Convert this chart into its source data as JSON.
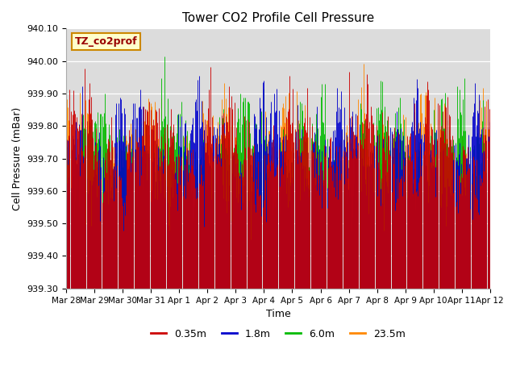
{
  "title": "Tower CO2 Profile Cell Pressure",
  "xlabel": "Time",
  "ylabel": "Cell Pressure (mBar)",
  "ylim": [
    939.3,
    940.1
  ],
  "yticks": [
    939.3,
    939.4,
    939.5,
    939.6,
    939.7,
    939.8,
    939.9,
    940.0,
    940.1
  ],
  "background_color": "#dcdcdc",
  "series": [
    {
      "label": "0.35m",
      "color": "#cc0000"
    },
    {
      "label": "1.8m",
      "color": "#0000cc"
    },
    {
      "label": "6.0m",
      "color": "#00bb00"
    },
    {
      "label": "23.5m",
      "color": "#ff8800"
    }
  ],
  "annotation_text": "TZ_co2prof",
  "annotation_bg": "#ffffcc",
  "annotation_border": "#cc8800",
  "x_tick_labels": [
    "Mar 28",
    "Mar 29",
    "Mar 30",
    "Mar 31",
    "Apr 1",
    "Apr 2",
    "Apr 3",
    "Apr 4",
    "Apr 5",
    "Apr 6",
    "Apr 7",
    "Apr 8",
    "Apr 9",
    "Apr 10",
    "Apr 11",
    "Apr 12"
  ],
  "base_pressure": 939.72,
  "seed": 12345,
  "n_points": 500
}
